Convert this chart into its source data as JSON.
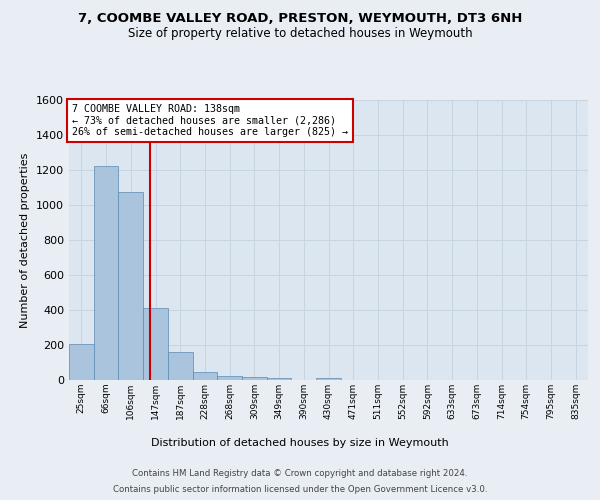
{
  "title": "7, COOMBE VALLEY ROAD, PRESTON, WEYMOUTH, DT3 6NH",
  "subtitle": "Size of property relative to detached houses in Weymouth",
  "xlabel": "Distribution of detached houses by size in Weymouth",
  "ylabel": "Number of detached properties",
  "footer_line1": "Contains HM Land Registry data © Crown copyright and database right 2024.",
  "footer_line2": "Contains public sector information licensed under the Open Government Licence v3.0.",
  "bin_labels": [
    "25sqm",
    "66sqm",
    "106sqm",
    "147sqm",
    "187sqm",
    "228sqm",
    "268sqm",
    "309sqm",
    "349sqm",
    "390sqm",
    "430sqm",
    "471sqm",
    "511sqm",
    "552sqm",
    "592sqm",
    "633sqm",
    "673sqm",
    "714sqm",
    "754sqm",
    "795sqm",
    "835sqm"
  ],
  "bar_values": [
    205,
    1220,
    1075,
    410,
    160,
    47,
    25,
    15,
    13,
    0,
    13,
    0,
    0,
    0,
    0,
    0,
    0,
    0,
    0,
    0,
    0
  ],
  "bar_color": "#aac4de",
  "bar_edge_color": "#5a8ab0",
  "property_label": "7 COOMBE VALLEY ROAD: 138sqm",
  "annotation_line1": "← 73% of detached houses are smaller (2,286)",
  "annotation_line2": "26% of semi-detached houses are larger (825) →",
  "vline_color": "#cc0000",
  "annotation_box_color": "#ffffff",
  "annotation_box_edge": "#cc0000",
  "ylim": [
    0,
    1600
  ],
  "yticks": [
    0,
    200,
    400,
    600,
    800,
    1000,
    1200,
    1400,
    1600
  ],
  "grid_color": "#c8d4e0",
  "bg_color": "#e8eef4",
  "plot_bg_color": "#dce6f0",
  "vline_x_index": 2.78
}
